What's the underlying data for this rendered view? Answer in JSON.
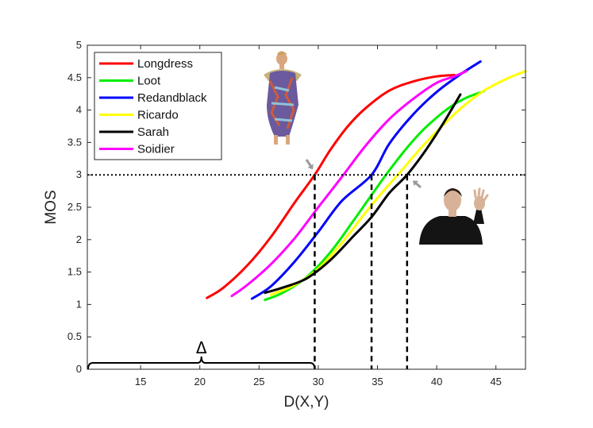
{
  "chart_data": {
    "type": "line",
    "xlabel": "D(X,Y)",
    "ylabel": "MOS",
    "xlim": [
      10.5,
      47.5
    ],
    "ylim": [
      0,
      5
    ],
    "x_ticks": [
      "15",
      "20",
      "25",
      "30",
      "35",
      "40",
      "45"
    ],
    "y_ticks": [
      "0",
      "0.5",
      "1",
      "1.5",
      "2",
      "2.5",
      "3",
      "3.5",
      "4",
      "4.5",
      "5"
    ],
    "grid": false,
    "legend_position": "top-left",
    "threshold": {
      "y": 3,
      "style": "dotted"
    },
    "markers": [
      29.7,
      34.5,
      37.5
    ],
    "delta": {
      "label": "Δ",
      "from": 10.5,
      "to": 29.7
    },
    "images": [
      {
        "name": "longdress-figure",
        "near_x": 26.5,
        "near_y": 3.2
      },
      {
        "name": "sarah-figure",
        "near_x": 38.5,
        "near_y": 2.9
      }
    ],
    "series": [
      {
        "name": "Longdress",
        "color": "#ff0000",
        "x": [
          20.6,
          22,
          24,
          26,
          28,
          29.7,
          31,
          32.5,
          34,
          36,
          38,
          40,
          41.5
        ],
        "y": [
          1.1,
          1.26,
          1.6,
          2.04,
          2.57,
          3.0,
          3.38,
          3.75,
          4.03,
          4.3,
          4.44,
          4.52,
          4.54
        ]
      },
      {
        "name": "Loot",
        "color": "#00ee00",
        "x": [
          25.5,
          27,
          29,
          31,
          33,
          34.5,
          36,
          37.5,
          39,
          41,
          42.5,
          44
        ],
        "y": [
          1.07,
          1.18,
          1.42,
          1.8,
          2.3,
          2.69,
          3.07,
          3.42,
          3.72,
          4.03,
          4.19,
          4.29
        ]
      },
      {
        "name": "Redandblack",
        "color": "#0000ff",
        "x": [
          24.4,
          26,
          28,
          30,
          32,
          34.5,
          36,
          38,
          40,
          42,
          43.7
        ],
        "y": [
          1.09,
          1.28,
          1.66,
          2.12,
          2.6,
          3.0,
          3.48,
          3.93,
          4.28,
          4.55,
          4.75
        ]
      },
      {
        "name": "Ricardo",
        "color": "#ffff00",
        "x": [
          26,
          28,
          30,
          32,
          34,
          35.5,
          37,
          38.5,
          40,
          42,
          44,
          46,
          47.5
        ],
        "y": [
          1.15,
          1.3,
          1.55,
          1.95,
          2.42,
          2.75,
          3.06,
          3.38,
          3.67,
          4.02,
          4.3,
          4.49,
          4.6
        ]
      },
      {
        "name": "Sarah",
        "color": "#000000",
        "x": [
          25.5,
          27,
          29,
          31,
          33,
          34.5,
          36,
          37.5,
          39,
          40.5,
          42
        ],
        "y": [
          1.18,
          1.26,
          1.4,
          1.68,
          2.06,
          2.35,
          2.72,
          3.0,
          3.36,
          3.78,
          4.24
        ]
      },
      {
        "name": "Soidier",
        "color": "#ff00ff",
        "x": [
          22.7,
          24,
          26,
          28,
          30,
          32,
          34,
          36,
          38,
          40,
          41.5,
          42.5
        ],
        "y": [
          1.13,
          1.3,
          1.62,
          2.02,
          2.5,
          2.97,
          3.45,
          3.86,
          4.17,
          4.42,
          4.52,
          4.6
        ]
      }
    ]
  }
}
